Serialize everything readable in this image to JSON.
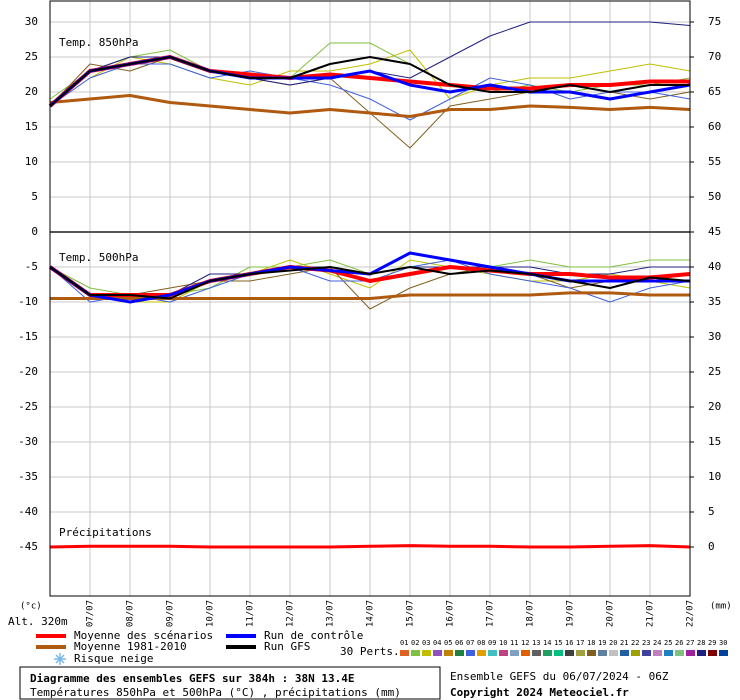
{
  "chart_data": {
    "type": "line",
    "title": "Diagramme des ensembles GEFS sur 384h : 38N 13.4E",
    "subtitle": "Températures 850hPa et 500hPa (°C) , précipitations (mm)",
    "source": "Ensemble GEFS du 06/07/2024 - 06Z",
    "copyright": "Copyright 2024 Meteociel.fr",
    "y_unit": "(°c)",
    "y2_unit": "(mm)",
    "altitude": "Alt. 320m",
    "annotations": {
      "t850": "Temp. 850hPa",
      "t500": "Temp. 500hPa",
      "precip": "Précipitations"
    },
    "x": [
      0,
      24,
      48,
      72,
      96,
      120,
      144,
      168,
      192,
      216,
      240,
      264,
      288,
      312,
      336,
      360,
      384
    ],
    "xlim": [
      0,
      384
    ],
    "xticks": [
      {
        "value": 24,
        "label": "07/07"
      },
      {
        "value": 48,
        "label": "08/07"
      },
      {
        "value": 72,
        "label": "09/07"
      },
      {
        "value": 96,
        "label": "10/07"
      },
      {
        "value": 120,
        "label": "11/07"
      },
      {
        "value": 144,
        "label": "12/07"
      },
      {
        "value": 168,
        "label": "13/07"
      },
      {
        "value": 192,
        "label": "14/07"
      },
      {
        "value": 216,
        "label": "15/07"
      },
      {
        "value": 240,
        "label": "16/07"
      },
      {
        "value": 264,
        "label": "17/07"
      },
      {
        "value": 288,
        "label": "18/07"
      },
      {
        "value": 312,
        "label": "19/07"
      },
      {
        "value": 336,
        "label": "20/07"
      },
      {
        "value": 360,
        "label": "21/07"
      },
      {
        "value": 384,
        "label": "22/07"
      }
    ],
    "ylim": [
      -52,
      33
    ],
    "yticks": [
      30,
      25,
      20,
      15,
      10,
      5,
      0,
      -5,
      -10,
      -15,
      -20,
      -25,
      -30,
      -35,
      -40,
      -45
    ],
    "y2lim": [
      -7,
      78
    ],
    "y2ticks": [
      75,
      70,
      65,
      60,
      55,
      50,
      45,
      40,
      35,
      30,
      25,
      20,
      15,
      10,
      5,
      0
    ],
    "grid": true,
    "series": [
      {
        "name": "Moyenne des scénarios",
        "color": "#ff0000",
        "width": 4,
        "values": {
          "850": [
            18,
            23,
            24,
            25,
            23,
            22.5,
            22,
            22.5,
            22,
            21.5,
            21,
            20.5,
            20.5,
            21,
            21,
            21.5,
            21.5
          ],
          "500": [
            -5,
            -9,
            -9,
            -9,
            -7,
            -6,
            -5,
            -5.5,
            -7,
            -6,
            -5,
            -5.5,
            -6,
            -6,
            -6.5,
            -6.5,
            -6
          ]
        }
      },
      {
        "name": "Moyenne 1981-2010",
        "color": "#b05a10",
        "width": 3,
        "values": {
          "850": [
            18.5,
            19,
            19.5,
            18.5,
            18,
            17.5,
            17,
            17.5,
            17,
            16.5,
            17.5,
            17.5,
            18,
            17.8,
            17.5,
            17.8,
            17.5
          ],
          "500": [
            -9.5,
            -9.5,
            -9.5,
            -9.5,
            -9.5,
            -9.5,
            -9.5,
            -9.5,
            -9.5,
            -9,
            -9,
            -9,
            -9,
            -8.7,
            -8.7,
            -9,
            -9
          ]
        }
      },
      {
        "name": "Run de contrôle",
        "color": "#0000ff",
        "width": 3,
        "values": {
          "850": [
            18,
            23,
            24,
            25,
            23,
            22,
            22,
            22,
            23,
            21,
            20,
            21,
            20,
            20,
            19,
            20,
            21
          ],
          "500": [
            -5,
            -9,
            -10,
            -9,
            -7,
            -6,
            -5,
            -5.5,
            -6,
            -3,
            -4,
            -5,
            -6,
            -7,
            -7,
            -7,
            -7
          ]
        }
      },
      {
        "name": "Run GFS",
        "color": "#000000",
        "width": 2,
        "values": {
          "850": [
            18,
            23,
            24,
            25,
            23,
            22,
            22,
            24,
            25,
            24,
            21,
            20,
            20,
            21,
            20,
            21,
            21
          ],
          "500": [
            -5,
            -9,
            -9,
            -9.5,
            -7,
            -6,
            -5.5,
            -5,
            -6,
            -5,
            -6,
            -5.5,
            -6,
            -7,
            -8,
            -6.5,
            -7
          ]
        }
      }
    ],
    "members": [
      {
        "color": "#c0c000",
        "values": {
          "850": [
            18,
            22,
            25,
            24,
            22,
            21,
            23,
            23,
            24,
            26,
            19,
            21,
            22,
            22,
            23,
            24,
            23
          ],
          "500": [
            -5,
            -9,
            -10,
            -10,
            -7,
            -6,
            -4,
            -6,
            -8,
            -4,
            -5,
            -6,
            -7,
            -7,
            -6,
            -7,
            -8
          ]
        }
      },
      {
        "color": "#80c040",
        "values": {
          "850": [
            19,
            23,
            25,
            26,
            23,
            22,
            22,
            27,
            27,
            24,
            21,
            20,
            21,
            20,
            21,
            21,
            22
          ],
          "500": [
            -5,
            -8,
            -9,
            -9,
            -8,
            -5,
            -5,
            -4,
            -6,
            -3,
            -4,
            -5,
            -4,
            -5,
            -5,
            -4,
            -4
          ]
        }
      },
      {
        "color": "#806020",
        "values": {
          "850": [
            18,
            24,
            23,
            25,
            23,
            22,
            21,
            22,
            17,
            12,
            18,
            19,
            20,
            21,
            20,
            19,
            20
          ],
          "500": [
            -5,
            -9,
            -9,
            -8,
            -7,
            -7,
            -6,
            -5,
            -11,
            -8,
            -6,
            -5,
            -6,
            -8,
            -7,
            -7,
            -6
          ]
        }
      },
      {
        "color": "#4060e0",
        "values": {
          "850": [
            18,
            22,
            24,
            24,
            22,
            23,
            22,
            21,
            19,
            16,
            19,
            22,
            21,
            19,
            20,
            20,
            19
          ],
          "500": [
            -5,
            -10,
            -9,
            -10,
            -8,
            -6,
            -5,
            -7,
            -7,
            -5,
            -4,
            -6,
            -7,
            -8,
            -10,
            -8,
            -7
          ]
        }
      },
      {
        "color": "#202080",
        "values": {
          "850": [
            18,
            23,
            25,
            25,
            23,
            22,
            21,
            22,
            23,
            22,
            25,
            28,
            30,
            30,
            30,
            30,
            29.5
          ],
          "500": [
            -5,
            -9,
            -9,
            -9,
            -6,
            -6,
            -5,
            -5,
            -6,
            -5,
            -5,
            -5,
            -5,
            -6,
            -6,
            -5,
            -5
          ]
        }
      }
    ],
    "precipitation": {
      "axis": "y2",
      "color": "#ff0000",
      "values": [
        0,
        0.1,
        0.1,
        0.1,
        0,
        0,
        0,
        0,
        0.1,
        0.2,
        0.1,
        0.1,
        0,
        0,
        0.1,
        0.2,
        0
      ]
    },
    "snow_label": "Risque neige",
    "perturbations": {
      "label": "30 Perts.",
      "ids": [
        "01",
        "02",
        "03",
        "04",
        "05",
        "06",
        "07",
        "08",
        "09",
        "10",
        "11",
        "12",
        "13",
        "14",
        "15",
        "16",
        "17",
        "18",
        "19",
        "20",
        "21",
        "22",
        "23",
        "24",
        "25",
        "26",
        "27",
        "28",
        "29",
        "30"
      ],
      "colors": [
        "#e06020",
        "#80c040",
        "#c0c000",
        "#9050c0",
        "#c08000",
        "#208040",
        "#4060e0",
        "#e0a000",
        "#40c0c0",
        "#c04080",
        "#80a0c0",
        "#e06000",
        "#606060",
        "#20a060",
        "#00c080",
        "#404040",
        "#a0a040",
        "#806020",
        "#6080a0",
        "#c0c0c0",
        "#2060a0",
        "#a0a000",
        "#4040a0",
        "#c080c0",
        "#2080c0",
        "#80c080",
        "#a020a0",
        "#202080",
        "#800000",
        "#0040a0"
      ]
    }
  }
}
